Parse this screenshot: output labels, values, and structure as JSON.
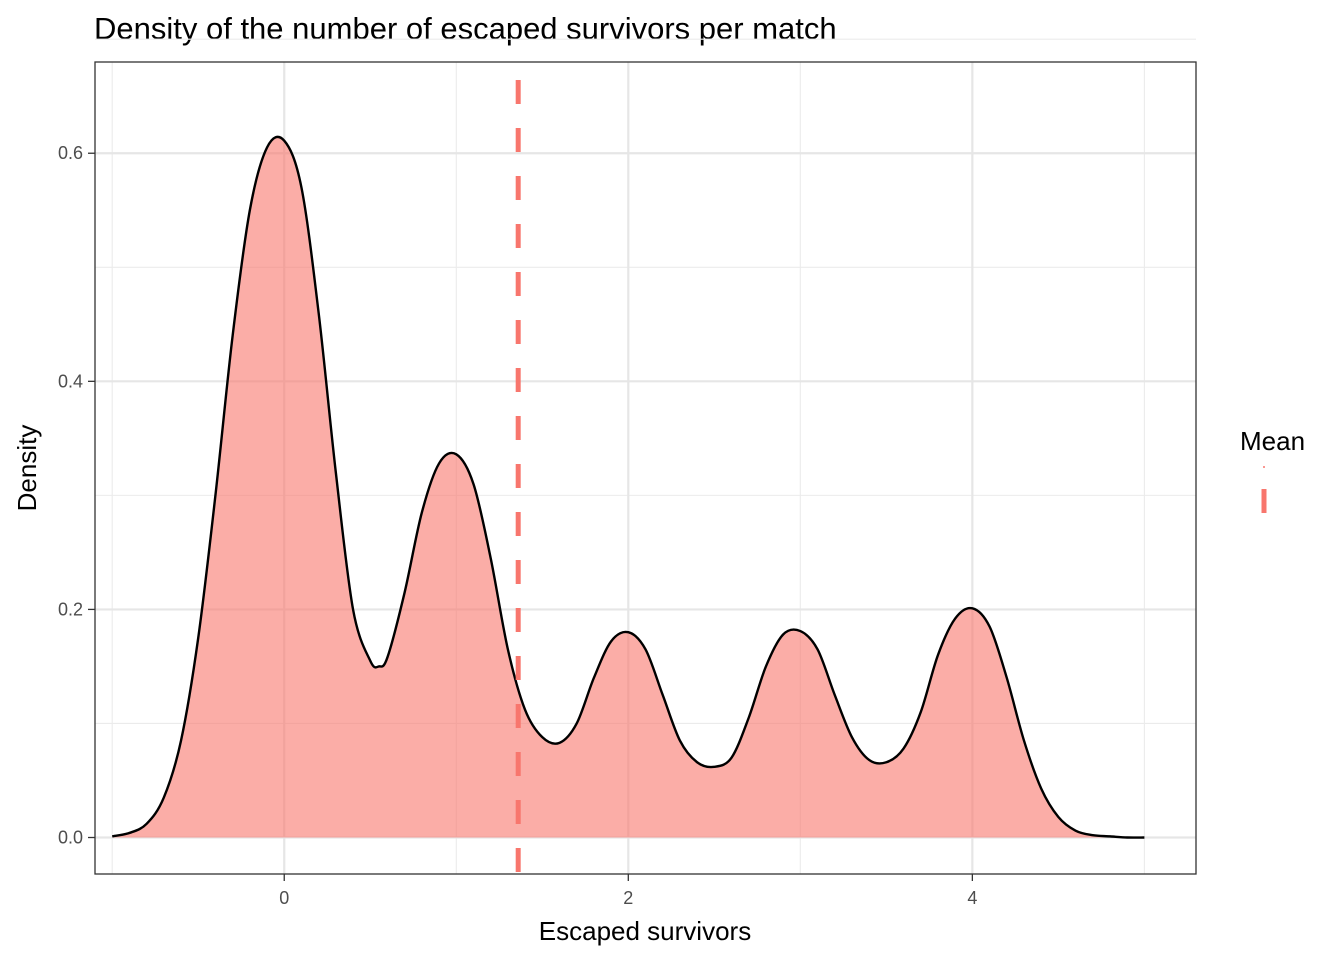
{
  "chart_data": {
    "type": "area",
    "title": "Density of the number of escaped survivors per match",
    "xlabel": "Escaped survivors",
    "ylabel": "Density",
    "xlim": [
      -1.1,
      5.3
    ],
    "ylim": [
      -0.032,
      0.68
    ],
    "x_ticks": [
      0,
      2,
      4
    ],
    "y_ticks": [
      0.0,
      0.2,
      0.4,
      0.6
    ],
    "x_tick_labels": [
      "0",
      "2",
      "4"
    ],
    "y_tick_labels": [
      "0.0",
      "0.2",
      "0.4",
      "0.6"
    ],
    "grid": true,
    "series": [
      {
        "x": [
          -1.0,
          -0.9,
          -0.8,
          -0.7,
          -0.6,
          -0.5,
          -0.4,
          -0.3,
          -0.2,
          -0.1,
          0.0,
          0.1,
          0.2,
          0.3,
          0.4,
          0.5,
          0.55,
          0.6,
          0.7,
          0.8,
          0.9,
          1.0,
          1.1,
          1.2,
          1.3,
          1.4,
          1.5,
          1.6,
          1.7,
          1.8,
          1.9,
          2.0,
          2.1,
          2.2,
          2.3,
          2.4,
          2.5,
          2.6,
          2.7,
          2.8,
          2.9,
          3.0,
          3.1,
          3.2,
          3.3,
          3.4,
          3.5,
          3.6,
          3.7,
          3.8,
          3.9,
          4.0,
          4.1,
          4.2,
          4.3,
          4.4,
          4.5,
          4.6,
          4.7,
          4.8,
          4.9,
          5.0
        ],
        "y": [
          0.001,
          0.004,
          0.012,
          0.035,
          0.085,
          0.175,
          0.3,
          0.44,
          0.55,
          0.605,
          0.611,
          0.57,
          0.46,
          0.32,
          0.2,
          0.155,
          0.15,
          0.158,
          0.215,
          0.285,
          0.328,
          0.336,
          0.31,
          0.245,
          0.165,
          0.112,
          0.088,
          0.083,
          0.1,
          0.14,
          0.172,
          0.18,
          0.165,
          0.125,
          0.085,
          0.066,
          0.062,
          0.07,
          0.105,
          0.15,
          0.178,
          0.181,
          0.165,
          0.125,
          0.088,
          0.068,
          0.066,
          0.078,
          0.11,
          0.16,
          0.192,
          0.201,
          0.185,
          0.14,
          0.085,
          0.043,
          0.018,
          0.006,
          0.002,
          0.001,
          0.0,
          0.0
        ],
        "fill": "#F8766D",
        "fill_opacity": 0.6,
        "line_color": "#000000"
      }
    ],
    "reference_lines": [
      {
        "type": "vline",
        "x": 1.36,
        "color": "#F8766D",
        "linestyle": "dashed"
      }
    ],
    "legend": {
      "title": "Mean",
      "placement": "right",
      "entries": [
        {
          "color": "#F8766D",
          "linestyle": "dashed"
        }
      ]
    }
  }
}
